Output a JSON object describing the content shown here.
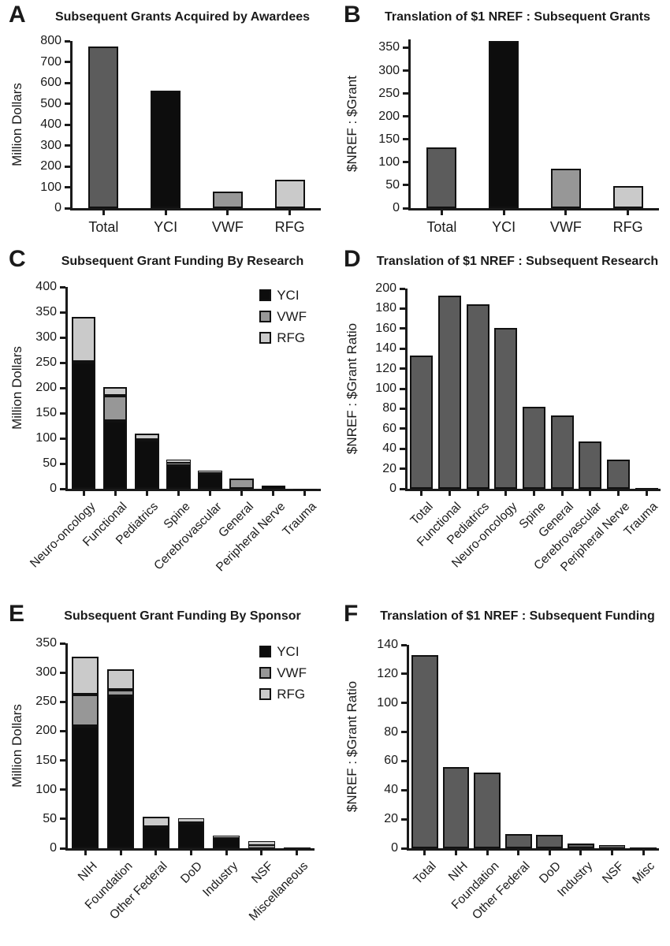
{
  "figure": {
    "background": "#ffffff",
    "description": "Six-panel bar chart figure (A-F) on NREF grant funding translation"
  },
  "colors": {
    "axis": "#1a1a1a",
    "text": "#1a1a1a",
    "bar_border": "#111111",
    "yci": "#0d0d0d",
    "total_dark": "#5c5c5c",
    "vwf": "#979797",
    "rfg": "#cacaca"
  },
  "legend_labels": [
    "YCI",
    "VWF",
    "RFG"
  ],
  "chart_data": [
    {
      "letter": "A",
      "title": "Subsequent Grants Acquired by Awardees",
      "type": "bar",
      "ylabel": "Million Dollars",
      "ymax": 800,
      "ytick": 100,
      "yscale_max": 800,
      "xlabel_rotation": 0,
      "categories": [
        "Total",
        "YCI",
        "VWF",
        "RFG"
      ],
      "values": [
        775,
        563,
        78,
        136
      ],
      "bar_color_keys": [
        "total_dark",
        "yci",
        "vwf",
        "rfg"
      ],
      "legend": false
    },
    {
      "letter": "B",
      "title": "Translation of $1 NREF : Subsequent Grants",
      "type": "bar",
      "ylabel": "$NREF : $Grant",
      "ymax": 350,
      "ytick": 50,
      "yscale_max": 368,
      "xlabel_rotation": 0,
      "categories": [
        "Total",
        "YCI",
        "VWF",
        "RFG"
      ],
      "values": [
        133,
        364,
        86,
        48
      ],
      "bar_color_keys": [
        "total_dark",
        "yci",
        "vwf",
        "rfg"
      ],
      "legend": false
    },
    {
      "letter": "C",
      "title": "Subsequent Grant Funding By Research",
      "type": "stacked",
      "ylabel": "Million Dollars",
      "ymax": 400,
      "ytick": 50,
      "yscale_max": 400,
      "xlabel_rotation": 45,
      "categories": [
        "Neuro-oncology",
        "Functional",
        "Pediatrics",
        "Spine",
        "Cerebrovascular",
        "General",
        "Peripheral Nerve",
        "Trauma"
      ],
      "series": [
        {
          "name": "YCI",
          "color_key": "yci",
          "values": [
            252,
            134,
            97,
            47,
            32,
            0,
            7,
            0.5
          ]
        },
        {
          "name": "VWF",
          "color_key": "vwf",
          "values": [
            0,
            50,
            0,
            5,
            0,
            21,
            0,
            0
          ]
        },
        {
          "name": "RFG",
          "color_key": "rfg",
          "values": [
            88,
            18,
            13,
            6,
            4,
            0,
            0,
            0
          ]
        }
      ],
      "legend": true,
      "legend_position": "top-right"
    },
    {
      "letter": "D",
      "title": "Translation of $1 NREF : Subsequent Research",
      "type": "bar",
      "ylabel": "$NREF : $Grant Ratio",
      "ymax": 200,
      "ytick": 20,
      "yscale_max": 200,
      "xlabel_rotation": 45,
      "categories": [
        "Total",
        "Functional",
        "Pediatrics",
        "Neuro-oncology",
        "Spine",
        "General",
        "Cerebrovascular",
        "Peripheral Nerve",
        "Trauma"
      ],
      "values": [
        133,
        193,
        184,
        161,
        82,
        73,
        47,
        29,
        0.5
      ],
      "bar_color": "total_dark",
      "legend": false
    },
    {
      "letter": "E",
      "title": "Subsequent Grant Funding By Sponsor",
      "type": "stacked",
      "ylabel": "Million Dollars",
      "ymax": 350,
      "ytick": 50,
      "yscale_max": 350,
      "xlabel_rotation": 45,
      "categories": [
        "NIH",
        "Foundation",
        "Other Federal",
        "DoD",
        "Industry",
        "NSF",
        "Miscellaneous"
      ],
      "series": [
        {
          "name": "YCI",
          "color_key": "yci",
          "values": [
            209,
            260,
            36,
            43,
            18,
            0,
            2
          ]
        },
        {
          "name": "VWF",
          "color_key": "vwf",
          "values": [
            53,
            11,
            0,
            2,
            0,
            5,
            0
          ]
        },
        {
          "name": "RFG",
          "color_key": "rfg",
          "values": [
            65,
            34,
            18,
            6,
            4,
            7,
            0
          ]
        }
      ],
      "legend": true,
      "legend_position": "top-right"
    },
    {
      "letter": "F",
      "title": "Translation of $1 NREF : Subsequent Funding",
      "type": "bar",
      "ylabel": "$NREF : $Grant Ratio",
      "ymax": 140,
      "ytick": 20,
      "yscale_max": 140,
      "xlabel_rotation": 45,
      "categories": [
        "Total",
        "NIH",
        "Foundation",
        "Other Federal",
        "DoD",
        "Industry",
        "NSF",
        "Misc"
      ],
      "values": [
        133,
        56,
        52,
        9.5,
        9,
        3.5,
        2,
        0.8
      ],
      "bar_color": "total_dark",
      "legend": false
    }
  ]
}
